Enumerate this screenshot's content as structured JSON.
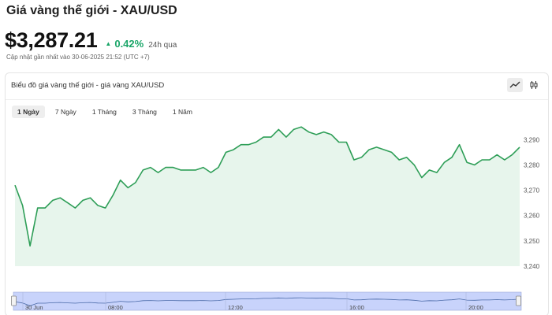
{
  "header": {
    "title": "Giá vàng thế giới - XAU/USD",
    "price": "$3,287.21",
    "change": "0.42%",
    "change_period": "24h qua",
    "updated": "Cập nhật gần nhất vào 30-06-2025 21:52 (UTC +7)"
  },
  "card": {
    "title": "Biểu đồ giá vàng thế giới - giá vàng XAU/USD",
    "chart_types": [
      {
        "icon": "line-chart-icon",
        "active": true
      },
      {
        "icon": "candlestick-icon",
        "active": false
      }
    ]
  },
  "ranges": [
    {
      "label": "1 Ngày",
      "active": true
    },
    {
      "label": "7 Ngày",
      "active": false
    },
    {
      "label": "1 Tháng",
      "active": false
    },
    {
      "label": "3 Tháng",
      "active": false
    },
    {
      "label": "1 Năm",
      "active": false
    }
  ],
  "colors": {
    "line": "#2e9e57",
    "area": "#e7f5ec",
    "up": "#1aa568",
    "navigator_fill": "#c8d3fb",
    "navigator_line": "#4a6aa8"
  },
  "chart_data": {
    "type": "area",
    "ylim": [
      3240,
      3296
    ],
    "y_ticks": [
      "3,240",
      "3,250",
      "3,260",
      "3,270",
      "3,280",
      "3,290"
    ],
    "navigator_labels": [
      "30 Jun",
      "08:00",
      "12:00",
      "16:00",
      "20:00"
    ],
    "values": [
      3272,
      3264,
      3248,
      3263,
      3263,
      3266,
      3267,
      3265,
      3263,
      3266,
      3267,
      3264,
      3263,
      3268,
      3274,
      3271,
      3273,
      3278,
      3279,
      3277,
      3279,
      3279,
      3278,
      3278,
      3278,
      3279,
      3277,
      3279,
      3285,
      3286,
      3288,
      3288,
      3289,
      3291,
      3291,
      3294,
      3291,
      3294,
      3295,
      3293,
      3292,
      3293,
      3292,
      3289,
      3289,
      3282,
      3283,
      3286,
      3287,
      3286,
      3285,
      3282,
      3283,
      3280,
      3275,
      3278,
      3277,
      3281,
      3283,
      3288,
      3281,
      3280,
      3282,
      3282,
      3284,
      3282,
      3284,
      3287
    ]
  }
}
